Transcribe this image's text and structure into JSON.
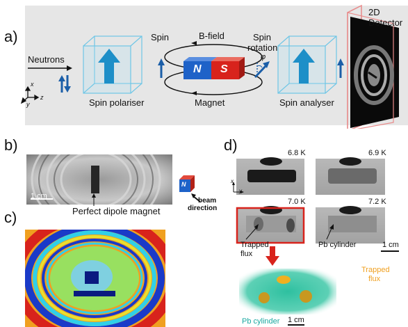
{
  "panel_a": {
    "letter": "a)",
    "neutrons": "Neutrons",
    "spin_polariser": "Spin polariser",
    "spin": "Spin",
    "b_field": "B-field",
    "magnet": "Magnet",
    "magnet_n": "N",
    "magnet_s": "S",
    "spin_rotation_1": "Spin",
    "spin_rotation_2": "rotation",
    "phi": "φ",
    "spin_analyser": "Spin analyser",
    "detector_1": "2D",
    "detector_2": "Detector",
    "axis_x": "x",
    "axis_y": "y",
    "axis_z": "z"
  },
  "panel_b": {
    "letter": "b)",
    "scale": "1 cm",
    "caption": "Perfect dipole magnet"
  },
  "panel_c": {
    "letter": "c)"
  },
  "beam": {
    "n_letter": "N",
    "label_1": "beam",
    "label_2": "direction"
  },
  "panel_d": {
    "letter": "d)",
    "temps": [
      "6.8 K",
      "6.9 K",
      "7.0 K",
      "7.2 K"
    ],
    "trapped_flux_1": "Trapped",
    "trapped_flux_2": "flux",
    "pb_cylinder": "Pb cylinder",
    "scale": "1 cm",
    "axis_x": "x",
    "axis_y": "y",
    "render_trapped_1": "Trapped",
    "render_trapped_2": "flux",
    "render_pb": "Pb cylinder",
    "render_scale": "1 cm"
  },
  "colors": {
    "panel_a_bg": "#e6e6e6",
    "box_cyan": "#6fc6e6",
    "arrow_blue": "#1b5ea8",
    "magnet_blue": "#1e62c8",
    "magnet_red": "#d8231c",
    "highlight_red": "#d8231c",
    "trapped_orange": "#f0a020",
    "pb_teal": "#1aa8a0"
  }
}
